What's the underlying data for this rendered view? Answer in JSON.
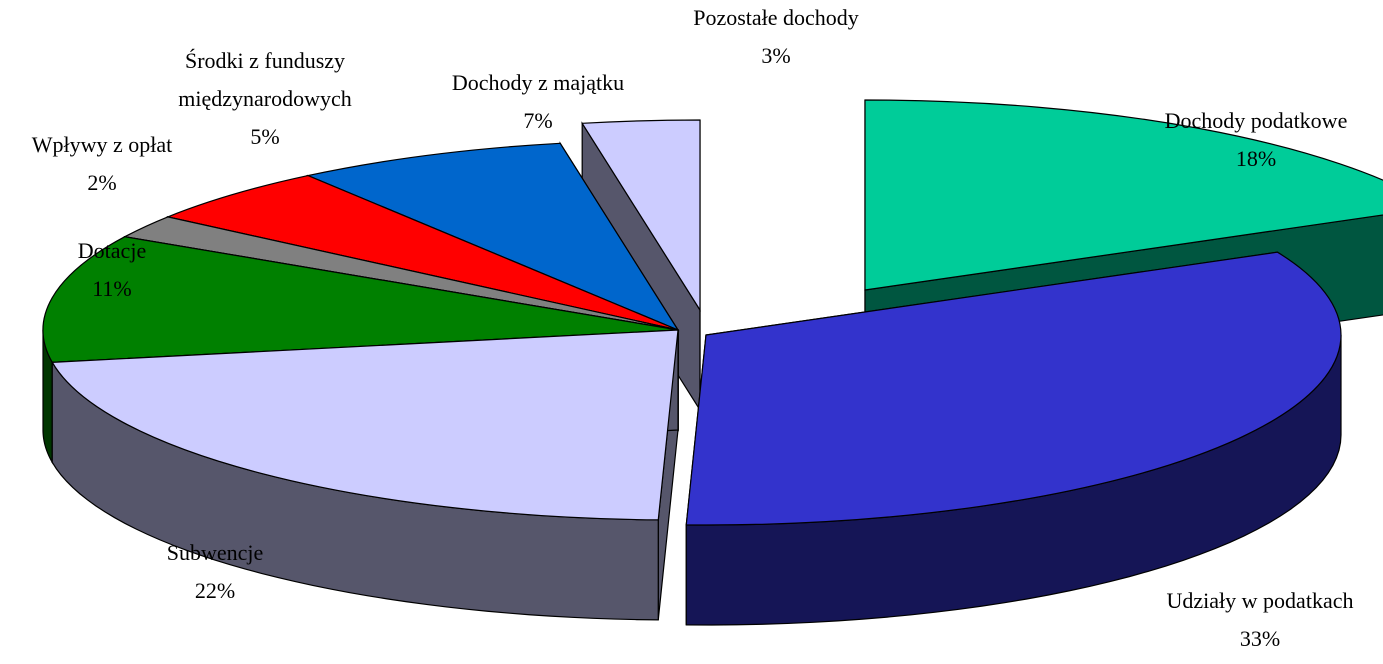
{
  "chart_data": {
    "type": "pie",
    "three_d": true,
    "exploded": true,
    "title": "",
    "legend": "none",
    "slices": [
      {
        "label": "Dochody podatkowe",
        "value": 18,
        "value_label": "18%",
        "color": "#00cc99"
      },
      {
        "label": "Udziały w podatkach",
        "value": 33,
        "value_label": "33%",
        "color": "#3333cc"
      },
      {
        "label": "Subwencje",
        "value": 22,
        "value_label": "22%",
        "color": "#ccccff"
      },
      {
        "label": "Dotacje",
        "value": 11,
        "value_label": "11%",
        "color": "#008000"
      },
      {
        "label": "Wpływy z opłat",
        "value": 2,
        "value_label": "2%",
        "color": "#808080"
      },
      {
        "label": "Środki z funduszy międzynarodowych",
        "value": 5,
        "value_label": "5%",
        "color": "#ff0000"
      },
      {
        "label": "Dochody z majątku",
        "value": 7,
        "value_label": "7%",
        "color": "#0066cc"
      },
      {
        "label": "Pozostałe dochody",
        "value": 3,
        "value_label": "3%",
        "color": "#ccccff"
      }
    ]
  }
}
